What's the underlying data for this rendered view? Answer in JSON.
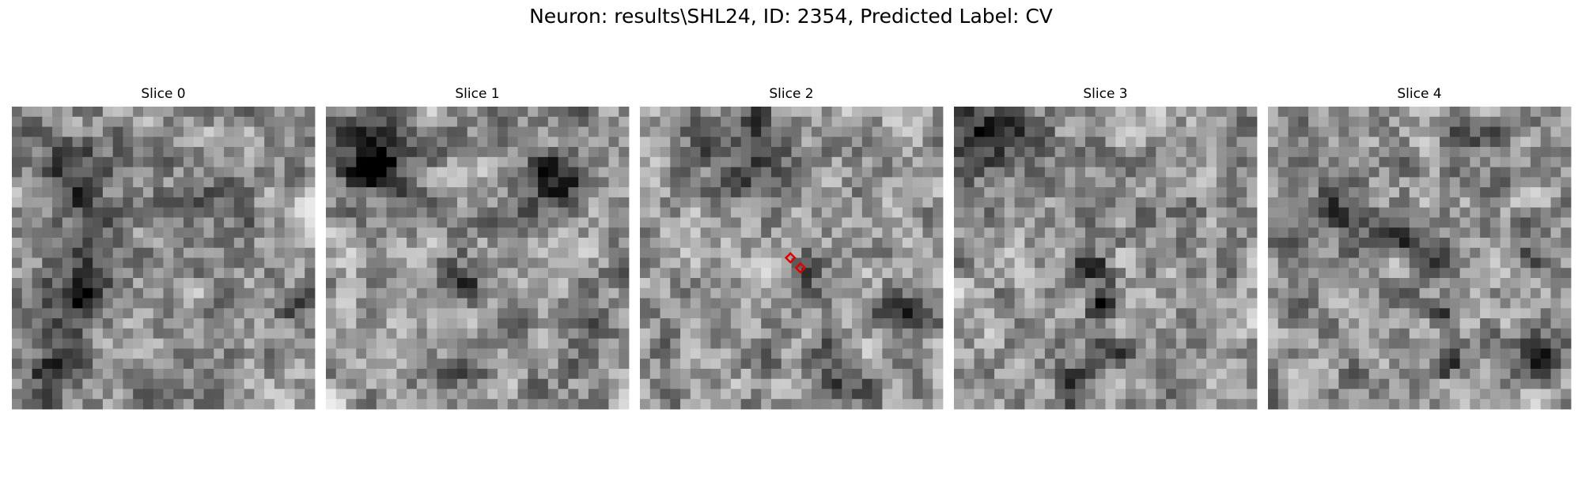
{
  "title": "Neuron: results\\SHL24, ID: 2354, Predicted Label: CV",
  "panels": [
    {
      "title": "Slice 0"
    },
    {
      "title": "Slice 1"
    },
    {
      "title": "Slice 2"
    },
    {
      "title": "Slice 3"
    },
    {
      "title": "Slice 4"
    }
  ]
}
